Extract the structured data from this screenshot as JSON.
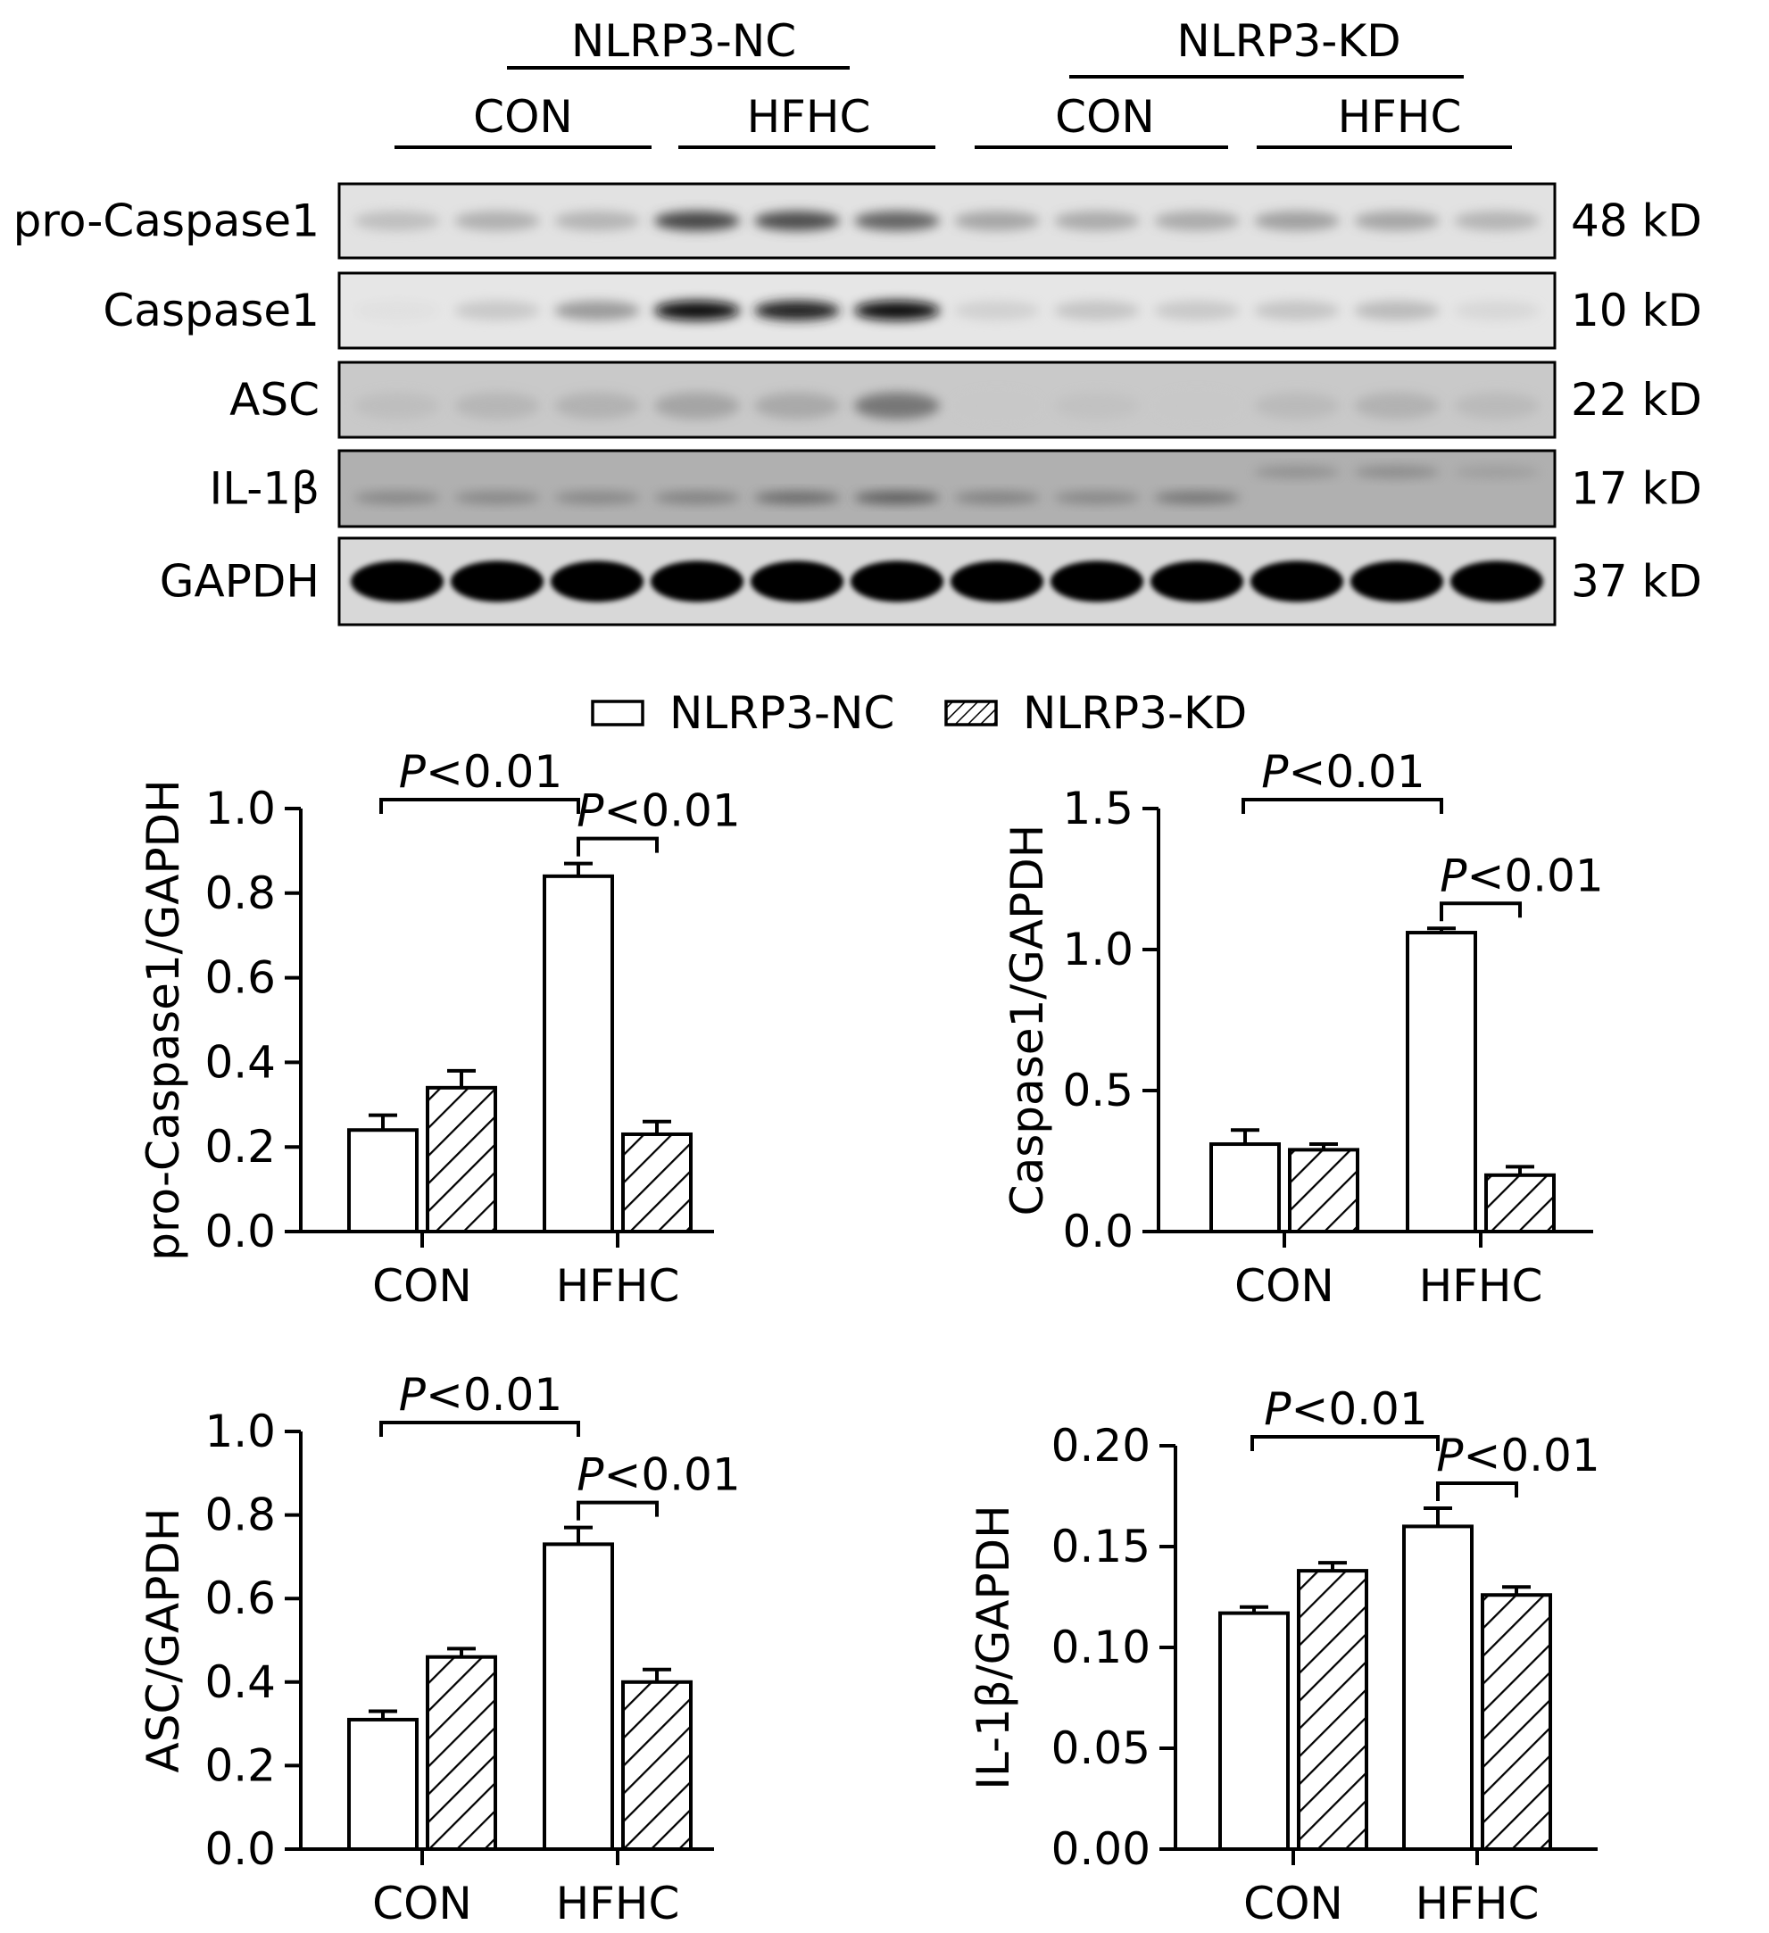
{
  "blot": {
    "group_headers": [
      "NLRP3-NC",
      "NLRP3-KD"
    ],
    "sub_headers": [
      "CON",
      "HFHC",
      "CON",
      "HFHC"
    ],
    "rows": [
      {
        "label": "pro-Caspase1",
        "size": "48 kD",
        "intensity": [
          0.32,
          0.38,
          0.36,
          0.72,
          0.7,
          0.62,
          0.42,
          0.4,
          0.4,
          0.44,
          0.42,
          0.36
        ],
        "band": "mid",
        "bg": "#e2e2e2"
      },
      {
        "label": "Caspase1",
        "size": "10 kD",
        "intensity": [
          0.14,
          0.28,
          0.46,
          0.97,
          0.86,
          0.94,
          0.24,
          0.3,
          0.28,
          0.3,
          0.34,
          0.2
        ],
        "band": "mid",
        "bg": "#e6e6e6"
      },
      {
        "label": "ASC",
        "size": "22 kD",
        "intensity": [
          0.28,
          0.32,
          0.34,
          0.4,
          0.38,
          0.56,
          0.22,
          0.26,
          0.22,
          0.3,
          0.34,
          0.3
        ],
        "band": "low",
        "bg": "#c9c9c9"
      },
      {
        "label": "IL-1β",
        "size": "17 kD",
        "intensity": [
          0.5,
          0.5,
          0.5,
          0.52,
          0.6,
          0.64,
          0.52,
          0.5,
          0.56,
          0.46,
          0.48,
          0.4
        ],
        "band": "split",
        "bg": "#b0b0b0"
      },
      {
        "label": "GAPDH",
        "size": "37 kD",
        "intensity": [
          1,
          1,
          1,
          1,
          1,
          1,
          1,
          1,
          1,
          1,
          1,
          1
        ],
        "band": "full",
        "bg": "#d8d8d8"
      }
    ]
  },
  "legend": {
    "items": [
      "NLRP3-NC",
      "NLRP3-KD"
    ]
  },
  "colors": {
    "ink": "#000000",
    "fill": "#ffffff"
  },
  "chart_data": [
    {
      "type": "bar",
      "ylabel": "pro-Caspase1/GAPDH",
      "categories": [
        "CON",
        "HFHC"
      ],
      "series": [
        {
          "name": "NLRP3-NC",
          "values": [
            0.24,
            0.84
          ],
          "errors": [
            0.035,
            0.03
          ]
        },
        {
          "name": "NLRP3-KD",
          "values": [
            0.34,
            0.23
          ],
          "errors": [
            0.04,
            0.03
          ]
        }
      ],
      "ylim": [
        0,
        1.0
      ],
      "yticks": [
        "0.0",
        "0.2",
        "0.4",
        "0.6",
        "0.8",
        "1.0"
      ],
      "annotations": [
        {
          "p_italic": "P",
          "text": "<0.01"
        },
        {
          "p_italic": "P",
          "text": "<0.01"
        }
      ]
    },
    {
      "type": "bar",
      "ylabel": "Caspase1/GAPDH",
      "categories": [
        "CON",
        "HFHC"
      ],
      "series": [
        {
          "name": "NLRP3-NC",
          "values": [
            0.31,
            1.06
          ],
          "errors": [
            0.05,
            0.015
          ]
        },
        {
          "name": "NLRP3-KD",
          "values": [
            0.29,
            0.2
          ],
          "errors": [
            0.02,
            0.03
          ]
        }
      ],
      "ylim": [
        0,
        1.5
      ],
      "yticks": [
        "0.0",
        "0.5",
        "1.0",
        "1.5"
      ],
      "annotations": [
        {
          "p_italic": "P",
          "text": "<0.01"
        },
        {
          "p_italic": "P",
          "text": "<0.01"
        }
      ]
    },
    {
      "type": "bar",
      "ylabel": "ASC/GAPDH",
      "categories": [
        "CON",
        "HFHC"
      ],
      "series": [
        {
          "name": "NLRP3-NC",
          "values": [
            0.31,
            0.73
          ],
          "errors": [
            0.02,
            0.04
          ]
        },
        {
          "name": "NLRP3-KD",
          "values": [
            0.46,
            0.4
          ],
          "errors": [
            0.02,
            0.03
          ]
        }
      ],
      "ylim": [
        0,
        1.0
      ],
      "yticks": [
        "0.0",
        "0.2",
        "0.4",
        "0.6",
        "0.8",
        "1.0"
      ],
      "annotations": [
        {
          "p_italic": "P",
          "text": "<0.01"
        },
        {
          "p_italic": "P",
          "text": "<0.01"
        }
      ]
    },
    {
      "type": "bar",
      "ylabel": "IL-1β/GAPDH",
      "categories": [
        "CON",
        "HFHC"
      ],
      "series": [
        {
          "name": "NLRP3-NC",
          "values": [
            0.117,
            0.16
          ],
          "errors": [
            0.003,
            0.009
          ]
        },
        {
          "name": "NLRP3-KD",
          "values": [
            0.138,
            0.126
          ],
          "errors": [
            0.004,
            0.004
          ]
        }
      ],
      "ylim": [
        0,
        0.2
      ],
      "yticks": [
        "0.00",
        "0.05",
        "0.10",
        "0.15",
        "0.20"
      ],
      "annotations": [
        {
          "p_italic": "P",
          "text": "<0.01"
        },
        {
          "p_italic": "P",
          "text": "<0.01"
        }
      ]
    }
  ]
}
